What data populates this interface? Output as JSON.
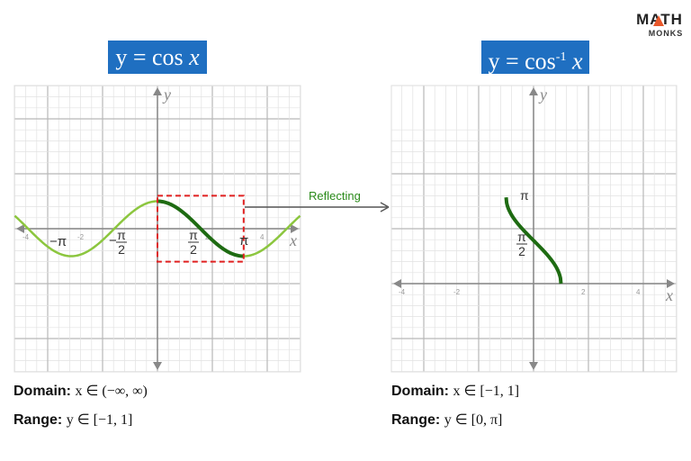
{
  "logo": {
    "line1": "MATH",
    "line2": "MONKS"
  },
  "left": {
    "title_prefix": "y = cos ",
    "title_var": "x",
    "domain_label": "Domain:",
    "domain_value": "x ∈ (−∞, ∞)",
    "range_label": "Range:",
    "range_value": "y ∈ [−1, 1]"
  },
  "right": {
    "title_prefix": "y = cos",
    "title_sup": "-1",
    "title_var": " x",
    "domain_label": "Domain:",
    "domain_value": "x ∈ [−1, 1]",
    "range_label": "Range:",
    "range_value": "y ∈ [0, π]"
  },
  "arrow_label": "Reflecting",
  "colors": {
    "title_bg": "#1f6fc1",
    "curve_light": "#8cc63f",
    "curve_dark": "#1e6b12",
    "highlight_box": "#e02020",
    "grid": "#cccccc"
  },
  "chart_data": [
    {
      "type": "line",
      "function": "cos x",
      "xlim": [
        -5.2,
        5.2
      ],
      "ylim": [
        -5.2,
        5.2
      ],
      "grid": true,
      "xlabel": "x",
      "ylabel": "y",
      "x_ticks": [
        "-4",
        "-2",
        "2",
        "4"
      ],
      "pi_labels": [
        "−π",
        "−π/2",
        "π/2",
        "π"
      ],
      "highlight_interval": [
        0,
        3.14159
      ],
      "highlight_box_y": [
        -1.2,
        1.2
      ]
    },
    {
      "type": "line",
      "function": "cos⁻¹ x",
      "xlim": [
        -5.2,
        5.2
      ],
      "ylim": [
        -2.0,
        8.4
      ],
      "grid": true,
      "xlabel": "x",
      "ylabel": "y",
      "x_ticks": [
        "-4",
        "-2",
        "2",
        "4"
      ],
      "pi_labels": [
        "π",
        "π/2"
      ],
      "domain": [
        -1,
        1
      ]
    }
  ]
}
